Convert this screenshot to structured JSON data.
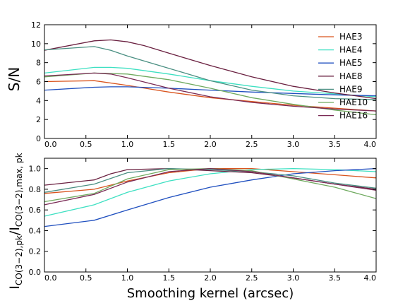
{
  "chart_data": [
    {
      "type": "line",
      "title": "",
      "xlabel": "",
      "ylabel": "S/N",
      "xlim": [
        0.0,
        4.0
      ],
      "ylim": [
        0,
        12
      ],
      "xticks": [
        "0.0",
        "0.5",
        "1.0",
        "1.5",
        "2.0",
        "2.5",
        "3.0",
        "3.5",
        "4.0"
      ],
      "xtick_values": [
        0.0,
        0.5,
        1.0,
        1.5,
        2.0,
        2.5,
        3.0,
        3.5,
        4.0
      ],
      "yticks": [
        "0",
        "2",
        "4",
        "6",
        "8",
        "10",
        "12"
      ],
      "ytick_values": [
        0,
        2,
        4,
        6,
        8,
        10,
        12
      ],
      "grid": false,
      "legend_position": "top-right",
      "series": [
        {
          "name": "HAE3",
          "color": "#d9541e",
          "x": [
            0.0,
            0.6,
            1.0,
            1.5,
            2.0,
            2.5,
            3.0,
            3.5,
            4.0
          ],
          "y": [
            6.0,
            6.1,
            5.6,
            4.9,
            4.3,
            3.9,
            3.5,
            3.2,
            2.9
          ]
        },
        {
          "name": "HAE4",
          "color": "#3ee0c2",
          "x": [
            0.0,
            0.6,
            0.8,
            1.0,
            1.5,
            2.0,
            2.5,
            3.0,
            3.5,
            4.0
          ],
          "y": [
            6.9,
            7.5,
            7.5,
            7.4,
            6.8,
            6.1,
            5.5,
            5.0,
            4.7,
            4.4
          ]
        },
        {
          "name": "HAE5",
          "color": "#1f4fbf",
          "x": [
            0.0,
            0.6,
            0.8,
            1.0,
            1.5,
            2.0,
            2.5,
            3.0,
            3.5,
            4.0
          ],
          "y": [
            5.1,
            5.4,
            5.45,
            5.45,
            5.3,
            5.1,
            4.9,
            4.75,
            4.6,
            4.5
          ]
        },
        {
          "name": "HAE8",
          "color": "#6a2040",
          "x": [
            0.0,
            0.6,
            0.8,
            1.0,
            1.2,
            1.5,
            2.0,
            2.5,
            3.0,
            3.5,
            4.0
          ],
          "y": [
            9.3,
            10.3,
            10.4,
            10.2,
            9.8,
            9.0,
            7.7,
            6.5,
            5.5,
            4.8,
            4.2
          ]
        },
        {
          "name": "HAE9",
          "color": "#4a8f82",
          "x": [
            0.0,
            0.6,
            0.8,
            1.0,
            1.5,
            2.0,
            2.5,
            3.0,
            3.5,
            4.0
          ],
          "y": [
            9.35,
            9.7,
            9.3,
            8.7,
            7.4,
            6.1,
            5.1,
            4.5,
            4.2,
            4.1
          ]
        },
        {
          "name": "HAE10",
          "color": "#6faa5f",
          "x": [
            0.0,
            0.6,
            1.0,
            1.5,
            2.0,
            2.5,
            3.0,
            3.5,
            4.0
          ],
          "y": [
            6.5,
            6.9,
            6.8,
            6.2,
            5.3,
            4.3,
            3.6,
            3.0,
            2.5
          ]
        },
        {
          "name": "HAE16",
          "color": "#7a2a55",
          "x": [
            0.0,
            0.6,
            0.8,
            1.0,
            1.5,
            2.0,
            2.5,
            3.0,
            3.5,
            4.0
          ],
          "y": [
            6.6,
            6.9,
            6.8,
            6.4,
            5.3,
            4.4,
            3.8,
            3.4,
            3.1,
            2.9
          ]
        }
      ]
    },
    {
      "type": "line",
      "title": "",
      "xlabel": "Smoothing kernel (arcsec)",
      "ylabel_main": "I",
      "ylabel_sub1": "CO(3−2),pk",
      "ylabel_slash": "/I",
      "ylabel_sub2": "CO(3−2),max, pk",
      "xlim": [
        0.0,
        4.0
      ],
      "ylim": [
        0.0,
        1.1
      ],
      "xticks": [
        "0.0",
        "0.5",
        "1.0",
        "1.5",
        "2.0",
        "2.5",
        "3.0",
        "3.5",
        "4.0"
      ],
      "xtick_values": [
        0.0,
        0.5,
        1.0,
        1.5,
        2.0,
        2.5,
        3.0,
        3.5,
        4.0
      ],
      "yticks": [
        "0.0",
        "0.2",
        "0.4",
        "0.6",
        "0.8",
        "1.0"
      ],
      "ytick_values": [
        0.0,
        0.2,
        0.4,
        0.6,
        0.8,
        1.0
      ],
      "grid": false,
      "series": [
        {
          "color": "#d9541e",
          "x": [
            0.0,
            0.6,
            1.0,
            1.5,
            2.0,
            2.5,
            3.0,
            3.5,
            4.0
          ],
          "y": [
            0.76,
            0.8,
            0.88,
            0.96,
            1.0,
            1.0,
            0.97,
            0.94,
            0.91
          ]
        },
        {
          "color": "#3ee0c2",
          "x": [
            0.0,
            0.6,
            1.0,
            1.5,
            2.0,
            2.5,
            3.0,
            3.5,
            4.0
          ],
          "y": [
            0.54,
            0.65,
            0.77,
            0.88,
            0.95,
            0.99,
            1.0,
            0.99,
            0.97
          ]
        },
        {
          "color": "#1f4fbf",
          "x": [
            0.0,
            0.6,
            1.0,
            1.5,
            2.0,
            2.5,
            3.0,
            3.5,
            4.0
          ],
          "y": [
            0.44,
            0.5,
            0.6,
            0.72,
            0.82,
            0.89,
            0.95,
            0.98,
            1.0
          ]
        },
        {
          "color": "#6a2040",
          "x": [
            0.0,
            0.6,
            0.8,
            1.0,
            1.5,
            2.0,
            2.5,
            3.0,
            3.5,
            4.0
          ],
          "y": [
            0.84,
            0.89,
            0.95,
            0.99,
            1.0,
            0.98,
            0.96,
            0.91,
            0.85,
            0.8
          ]
        },
        {
          "color": "#4a8f82",
          "x": [
            0.0,
            0.6,
            1.0,
            1.5,
            2.0,
            2.5,
            3.0,
            3.5,
            4.0
          ],
          "y": [
            0.77,
            0.85,
            0.96,
            1.0,
            0.99,
            0.97,
            0.93,
            0.86,
            0.81
          ]
        },
        {
          "color": "#6faa5f",
          "x": [
            0.0,
            0.6,
            1.0,
            1.5,
            2.0,
            2.5,
            3.0,
            3.5,
            4.0
          ],
          "y": [
            0.68,
            0.76,
            0.9,
            0.99,
            1.0,
            0.98,
            0.9,
            0.82,
            0.71
          ]
        },
        {
          "color": "#7a2a55",
          "x": [
            0.0,
            0.6,
            1.0,
            1.5,
            2.0,
            2.5,
            3.0,
            3.5,
            4.0
          ],
          "y": [
            0.65,
            0.75,
            0.87,
            0.97,
            1.0,
            0.97,
            0.91,
            0.85,
            0.79
          ]
        }
      ]
    }
  ]
}
